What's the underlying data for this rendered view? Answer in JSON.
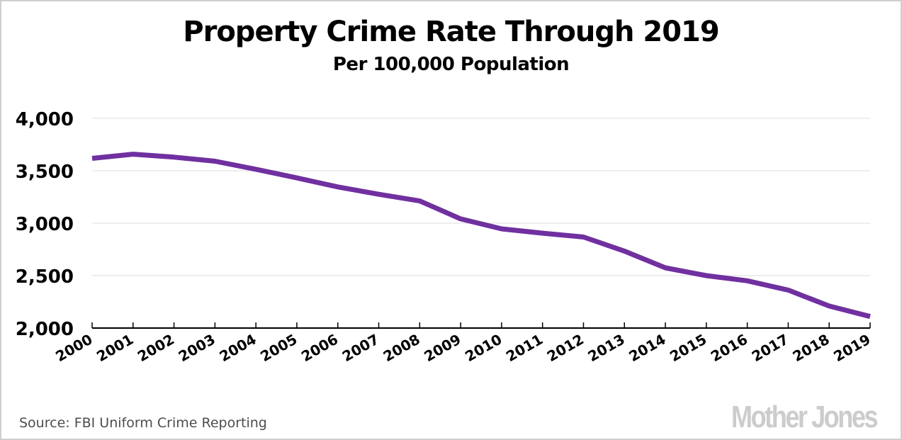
{
  "chart_data": {
    "type": "line",
    "title": "Property Crime Rate Through 2019",
    "subtitle": "Per 100,000 Population",
    "xlabel": "",
    "ylabel": "",
    "x": [
      "2000",
      "2001",
      "2002",
      "2003",
      "2004",
      "2005",
      "2006",
      "2007",
      "2008",
      "2009",
      "2010",
      "2011",
      "2012",
      "2013",
      "2014",
      "2015",
      "2016",
      "2017",
      "2018",
      "2019"
    ],
    "series": [
      {
        "name": "Property crime rate",
        "color": "#7030a0",
        "values": [
          3618,
          3658,
          3630,
          3591,
          3514,
          3432,
          3346,
          3276,
          3212,
          3041,
          2946,
          2905,
          2868,
          2734,
          2574,
          2500,
          2451,
          2362,
          2210,
          2110
        ]
      }
    ],
    "ylim": [
      2000,
      4000
    ],
    "yticks": [
      2000,
      2500,
      3000,
      3500,
      4000
    ],
    "ytick_labels": [
      "2,000",
      "2,500",
      "3,000",
      "3,500",
      "4,000"
    ],
    "grid": "horizontal",
    "legend": "none"
  },
  "footer": {
    "source": "Source: FBI Uniform Crime Reporting",
    "logo": "Mother Jones"
  },
  "colors": {
    "line": "#7030a0",
    "grid": "#e3e3e3",
    "axis": "#000000",
    "logo": "#cccccc",
    "source_text": "#4d4d4d"
  }
}
